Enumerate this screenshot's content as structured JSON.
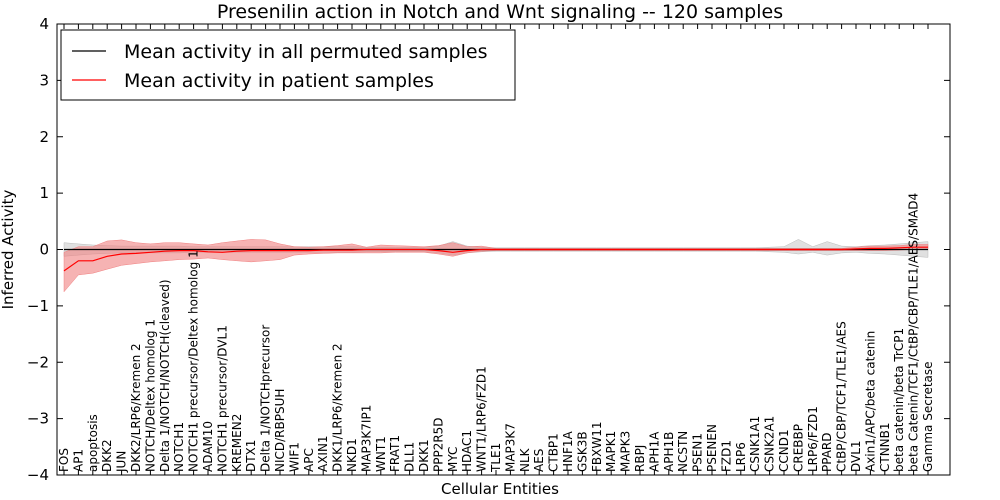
{
  "chart_data": {
    "type": "line",
    "title": "Presenilin action in Notch and Wnt signaling -- 120 samples",
    "xlabel": "Cellular Entities",
    "ylabel": "Inferred Activity",
    "ylim": [
      -4,
      4
    ],
    "yticks": [
      -4,
      -3,
      -2,
      -1,
      0,
      1,
      2,
      3,
      4
    ],
    "ytick_labels": [
      "−4",
      "−3",
      "−2",
      "−1",
      "0",
      "1",
      "2",
      "3",
      "4"
    ],
    "grid": false,
    "legend_position": "top-left",
    "categories": [
      "FOS",
      "AP1",
      "apoptosis",
      "DKK2",
      "JUN",
      "DKK2/LRP6/Kremen 2",
      "NOTCH/Deltex homolog 1",
      "Delta 1/NOTCH/NOTCH(cleaved)",
      "NOTCH1",
      "NOTCH1 precursor/Deltex homolog 1",
      "ADAM10",
      "NOTCH1 precursor/DVL1",
      "KREMEN2",
      "DTX1",
      "Delta 1/NOTCHprecursor",
      "NICD/RBPSUH",
      "WIF1",
      "APC",
      "AXIN1",
      "DKK1/LRP6/Kremen 2",
      "NKD1",
      "MAP3K7IP1",
      "WNT1",
      "FRAT1",
      "DLL1",
      "DKK1",
      "PPP2R5D",
      "MYC",
      "HDAC1",
      "WNT1/LRP6/FZD1",
      "TLE1",
      "MAP3K7",
      "NLK",
      "AES",
      "CTBP1",
      "HNF1A",
      "GSK3B",
      "FBXW11",
      "MAPK1",
      "MAPK3",
      "RBPJ",
      "APH1A",
      "APH1B",
      "NCSTN",
      "PSEN1",
      "PSENEN",
      "FZD1",
      "LRP6",
      "CSNK1A1",
      "CSNK2A1",
      "CCND1",
      "CREBBP",
      "LRP6/FZD1",
      "PPARD",
      "CtBP/CBP/TCF1/TLE1/AES",
      "DVL1",
      "Axin1/APC/beta catenin",
      "CTNNB1",
      "beta catenin/beta TrCP1",
      "beta Catenin/TCF1/CtBP/CBP/TLE1/AES/SMAD4",
      "Gamma Secretase"
    ],
    "series": [
      {
        "name": "Mean activity in all permuted samples",
        "color": "#000000",
        "band_color": "#bbbbbb",
        "values": [
          0,
          0,
          0,
          0,
          0,
          0,
          0,
          0,
          0,
          0,
          0,
          0,
          0,
          0,
          0,
          0,
          0,
          0,
          0,
          0,
          0,
          0,
          0,
          0,
          0,
          0,
          0,
          0,
          0,
          0,
          0,
          0,
          0,
          0,
          0,
          0,
          0,
          0,
          0,
          0,
          0,
          0,
          0,
          0,
          0,
          0,
          0,
          0,
          0,
          0,
          0,
          0,
          0,
          0,
          0,
          0,
          0,
          0,
          0,
          0,
          0
        ],
        "lower": [
          -0.12,
          -0.1,
          -0.08,
          -0.07,
          -0.06,
          -0.06,
          -0.06,
          -0.06,
          -0.06,
          -0.05,
          -0.05,
          -0.05,
          -0.05,
          -0.05,
          -0.05,
          -0.05,
          -0.05,
          -0.05,
          -0.05,
          -0.05,
          -0.05,
          -0.04,
          -0.04,
          -0.04,
          -0.04,
          -0.04,
          -0.06,
          -0.1,
          -0.06,
          -0.04,
          -0.03,
          -0.03,
          -0.03,
          -0.03,
          -0.03,
          -0.03,
          -0.03,
          -0.03,
          -0.03,
          -0.03,
          -0.03,
          -0.03,
          -0.03,
          -0.03,
          -0.03,
          -0.03,
          -0.03,
          -0.03,
          -0.03,
          -0.04,
          -0.05,
          -0.08,
          -0.05,
          -0.1,
          -0.06,
          -0.05,
          -0.07,
          -0.08,
          -0.1,
          -0.12,
          -0.14
        ],
        "upper": [
          0.12,
          0.1,
          0.08,
          0.07,
          0.06,
          0.06,
          0.06,
          0.06,
          0.06,
          0.05,
          0.05,
          0.05,
          0.05,
          0.05,
          0.05,
          0.05,
          0.05,
          0.05,
          0.05,
          0.05,
          0.05,
          0.04,
          0.04,
          0.04,
          0.04,
          0.04,
          0.06,
          0.14,
          0.06,
          0.04,
          0.03,
          0.03,
          0.03,
          0.03,
          0.03,
          0.03,
          0.03,
          0.03,
          0.03,
          0.03,
          0.03,
          0.03,
          0.03,
          0.03,
          0.03,
          0.03,
          0.03,
          0.03,
          0.03,
          0.04,
          0.05,
          0.18,
          0.05,
          0.14,
          0.06,
          0.05,
          0.07,
          0.08,
          0.1,
          0.12,
          0.14
        ]
      },
      {
        "name": "Mean activity in patient samples",
        "color": "#ff0000",
        "band_color": "#f08080",
        "values": [
          -0.38,
          -0.2,
          -0.2,
          -0.12,
          -0.08,
          -0.07,
          -0.05,
          -0.03,
          -0.02,
          -0.02,
          -0.04,
          -0.05,
          -0.03,
          -0.02,
          -0.02,
          -0.02,
          -0.02,
          -0.02,
          -0.01,
          -0.01,
          -0.01,
          0,
          0,
          0,
          0,
          0,
          -0.02,
          -0.05,
          -0.02,
          0,
          0,
          0,
          0,
          0,
          0,
          0,
          0,
          0,
          0,
          0,
          0,
          0,
          0,
          0,
          0,
          0,
          0,
          0,
          0,
          0,
          0,
          0,
          0,
          0,
          0,
          0.01,
          0.02,
          0.02,
          0.03,
          0.04,
          0.04
        ],
        "lower": [
          -0.75,
          -0.45,
          -0.42,
          -0.35,
          -0.28,
          -0.25,
          -0.22,
          -0.2,
          -0.18,
          -0.17,
          -0.15,
          -0.18,
          -0.2,
          -0.22,
          -0.2,
          -0.18,
          -0.1,
          -0.08,
          -0.07,
          -0.06,
          -0.06,
          -0.06,
          -0.06,
          -0.05,
          -0.05,
          -0.05,
          -0.08,
          -0.12,
          -0.06,
          -0.03,
          -0.02,
          -0.02,
          -0.02,
          -0.02,
          -0.02,
          -0.02,
          -0.02,
          -0.02,
          -0.02,
          -0.02,
          -0.02,
          -0.02,
          -0.02,
          -0.02,
          -0.02,
          -0.02,
          -0.02,
          -0.02,
          -0.02,
          -0.02,
          -0.02,
          -0.02,
          -0.02,
          -0.02,
          -0.02,
          -0.02,
          -0.02,
          -0.02,
          -0.01,
          0,
          0
        ],
        "upper": [
          -0.05,
          0.05,
          0.05,
          0.15,
          0.17,
          0.12,
          0.1,
          0.12,
          0.12,
          0.1,
          0.08,
          0.12,
          0.15,
          0.18,
          0.17,
          0.1,
          0.05,
          0.04,
          0.05,
          0.07,
          0.1,
          0.04,
          0.08,
          0.07,
          0.06,
          0.05,
          0.07,
          0.12,
          0.05,
          0.06,
          0.02,
          0.02,
          0.02,
          0.02,
          0.02,
          0.02,
          0.02,
          0.02,
          0.02,
          0.02,
          0.02,
          0.02,
          0.02,
          0.02,
          0.02,
          0.02,
          0.02,
          0.02,
          0.02,
          0.02,
          0.02,
          0.02,
          0.02,
          0.02,
          0.02,
          0.04,
          0.06,
          0.06,
          0.07,
          0.09,
          0.09
        ]
      }
    ]
  }
}
